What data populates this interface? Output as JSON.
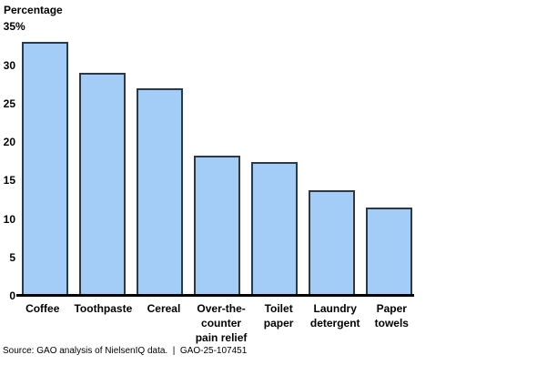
{
  "title": "Percentage",
  "source": "Source: GAO analysis of NielsenIQ data.  |  GAO-25-107451",
  "colors": {
    "bar_fill": "#A3CCF6",
    "bar_border": "#2C3A48",
    "axis": "#000000",
    "text": "#000000",
    "background": "#FFFFFF"
  },
  "y_axis": {
    "ticks": [
      {
        "value": 35,
        "label": "35",
        "suffix": "%"
      },
      {
        "value": 30,
        "label": "30",
        "suffix": ""
      },
      {
        "value": 25,
        "label": "25",
        "suffix": ""
      },
      {
        "value": 20,
        "label": "20",
        "suffix": ""
      },
      {
        "value": 15,
        "label": "15",
        "suffix": ""
      },
      {
        "value": 10,
        "label": "10",
        "suffix": ""
      },
      {
        "value": 5,
        "label": "5",
        "suffix": ""
      },
      {
        "value": 0,
        "label": "0",
        "suffix": ""
      }
    ]
  },
  "chart_data": {
    "type": "bar",
    "title": "Percentage",
    "categories": [
      "Coffee",
      "Toothpaste",
      "Cereal",
      "Over-the-counter pain relief",
      "Toilet paper",
      "Laundry detergent",
      "Paper towels"
    ],
    "category_display": [
      "Coffee",
      "Toothpaste",
      "Cereal",
      "Over-the-\ncounter\npain relief",
      "Toilet\npaper",
      "Laundry\ndetergent",
      "Paper\ntowels"
    ],
    "values": [
      33,
      29,
      27,
      18.2,
      17.4,
      13.7,
      11.5
    ],
    "xlabel": "",
    "ylabel": "Percentage",
    "ylim": [
      0,
      35
    ],
    "ytick_step": 5,
    "grid": false,
    "legend": "none",
    "source_note": "Source: GAO analysis of NielsenIQ data.  |  GAO-25-107451"
  }
}
